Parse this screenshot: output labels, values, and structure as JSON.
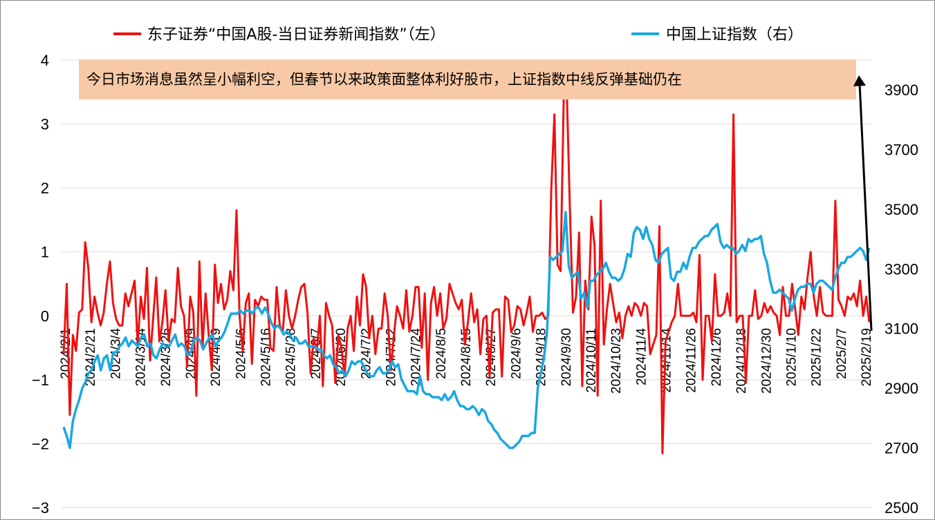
{
  "chart_data": {
    "type": "line",
    "title": "",
    "legend": {
      "placement": "top",
      "entries": [
        {
          "label": "东子证券“中国A股-当日证券新闻指数”（左）",
          "color": "#ee1111"
        },
        {
          "label": "中国上证指数（右）",
          "color": "#1aa8e0"
        }
      ]
    },
    "annotation": {
      "text": "今日市场消息虽然呈小幅利空，但春节以来政策面整体利好股市，上证指数中线反弹基础仍在",
      "background": "#f8c9a6",
      "arrow_color": "#000000"
    },
    "x_tick_labels": [
      "2024/2/1",
      "2024/2/21",
      "2024/3/4",
      "2024/3/14",
      "2024/3/26",
      "2024/4/9",
      "2024/4/19",
      "2024/5/6",
      "2024/5/16",
      "2024/5/28",
      "2024/6/7",
      "2024/6/20",
      "2024/7/2",
      "2024/7/12",
      "2024/7/24",
      "2024/8/5",
      "2024/8/15",
      "2024/8/27",
      "2024/9/6",
      "2024/9/18",
      "2024/9/30",
      "2024/10/11",
      "2024/10/23",
      "2024/11/4",
      "2024/11/14",
      "2024/11/26",
      "2024/12/6",
      "2024/12/18",
      "2024/12/30",
      "2025/1/10",
      "2025/1/22",
      "2025/2/7",
      "2025/2/19"
    ],
    "y_left": {
      "ticks": [
        4,
        3,
        2,
        1,
        0,
        -1,
        -2,
        -3
      ],
      "ylim": [
        -3,
        4
      ]
    },
    "y_right": {
      "ticks": [
        3900,
        3700,
        3500,
        3300,
        3100,
        2900,
        2700,
        2500
      ],
      "ylim": [
        2500,
        3960
      ]
    },
    "grid": true,
    "series": [
      {
        "name": "东子证券“中国A股-当日证券新闻指数”（左）",
        "axis": "left",
        "color": "#ee1111",
        "values": [
          -0.6,
          0.5,
          -1.55,
          -0.3,
          -0.55,
          0.05,
          0.1,
          1.15,
          0.75,
          -0.1,
          0.3,
          0.05,
          -0.15,
          0.05,
          0.5,
          0.85,
          0.2,
          -0.05,
          -0.15,
          -0.15,
          0.35,
          0.15,
          0.35,
          0.55,
          -0.45,
          0.3,
          -0.05,
          0.75,
          -0.7,
          -0.05,
          0.6,
          -0.4,
          -0.1,
          0.4,
          -0.4,
          -0.05,
          -0.1,
          0.75,
          0.15,
          0.0,
          -0.8,
          0.3,
          0.05,
          -1.25,
          0.85,
          -0.5,
          0.35,
          -0.3,
          -0.85,
          0.8,
          0.2,
          0.5,
          0.1,
          0.25,
          0.7,
          0.4,
          1.65,
          0.0,
          -0.55,
          0.2,
          0.35,
          -0.75,
          0.25,
          0.15,
          0.3,
          0.25,
          0.25,
          -0.5,
          -0.55,
          0.45,
          -0.15,
          -0.25,
          0.4,
          0.0,
          -0.2,
          0.0,
          0.25,
          0.45,
          0.5,
          0.05,
          -0.9,
          -0.35,
          -0.55,
          0.0,
          -1.1,
          0.2,
          0.0,
          -0.15,
          -1.05,
          -0.3,
          -0.5,
          -0.95,
          -0.2,
          0.0,
          -0.55,
          0.3,
          -0.15,
          0.65,
          0.45,
          -0.35,
          0.0,
          -0.6,
          -0.2,
          -0.2,
          0.35,
          0.0,
          -0.85,
          -0.3,
          0.15,
          0.0,
          -0.2,
          0.4,
          -0.25,
          0.0,
          0.45,
          0.45,
          -0.5,
          0.35,
          -1.0,
          0.2,
          0.45,
          0.0,
          0.35,
          -0.2,
          -0.05,
          0.5,
          0.35,
          0.2,
          0.1,
          0.25,
          -0.45,
          -0.1,
          0.35,
          -0.1,
          0.1,
          -0.6,
          -0.05,
          0.0,
          -0.95,
          0.05,
          0.1,
          0.1,
          -0.95,
          0.3,
          0.25,
          -0.25,
          -0.15,
          0.15,
          0.1,
          -0.15,
          0.05,
          0.3,
          -0.25,
          0.0,
          0.0,
          0.05,
          -0.05,
          0.0,
          2.0,
          3.15,
          0.8,
          0.7,
          3.4,
          3.5,
          1.7,
          0.05,
          0.3,
          1.3,
          -1.1,
          0.55,
          0.1,
          1.55,
          1.1,
          -1.25,
          1.8,
          -0.45,
          0.1,
          0.5,
          0.2,
          -0.1,
          0.05,
          -0.35,
          0.0,
          0.15,
          0.0,
          0.2,
          0.15,
          0.0,
          0.2,
          0.15,
          -0.6,
          -0.45,
          -0.3,
          1.4,
          -2.15,
          -0.4,
          -0.25,
          -0.1,
          0.0,
          0.5,
          0.0,
          0.0,
          0.0,
          0.0,
          0.05,
          -0.1,
          0.95,
          -1.0,
          0.0,
          0.0,
          -0.4,
          0.65,
          0.0,
          0.0,
          0.05,
          0.35,
          0.0,
          3.15,
          -0.1,
          0.0,
          0.0,
          -1.05,
          0.0,
          0.0,
          0.4,
          -0.05,
          0.0,
          0.2,
          0.05,
          0.15,
          0.05,
          0.0,
          -0.3,
          0.45,
          0.0,
          0.0,
          0.5,
          0.1,
          -0.3,
          0.3,
          0.1,
          0.6,
          1.0,
          0.3,
          0.0,
          0.45,
          0.05,
          0.0,
          0.0,
          0.0,
          1.8,
          0.25,
          0.15,
          0.0,
          0.3,
          0.25,
          0.35,
          0.15,
          0.55,
          0.0,
          0.3,
          -0.1
        ],
        "note": "estimated"
      },
      {
        "name": "中国上证指数（右）",
        "axis": "right",
        "color": "#1aa8e0",
        "values": [
          2770,
          2740,
          2700,
          2790,
          2830,
          2860,
          2900,
          2920,
          2950,
          2960,
          2990,
          3010,
          2960,
          3000,
          3010,
          2960,
          3020,
          3020,
          3040,
          3050,
          3070,
          3040,
          3060,
          3050,
          3040,
          3070,
          3080,
          3040,
          3050,
          3010,
          3000,
          3030,
          3050,
          3040,
          3040,
          3060,
          3080,
          3040,
          3050,
          3040,
          3010,
          3020,
          3060,
          3070,
          3060,
          3030,
          3050,
          3070,
          3080,
          3040,
          3060,
          3070,
          3090,
          3120,
          3150,
          3150,
          3150,
          3160,
          3150,
          3160,
          3160,
          3150,
          3170,
          3170,
          3150,
          3170,
          3150,
          3120,
          3100,
          3110,
          3100,
          3080,
          3090,
          3080,
          3060,
          3070,
          3050,
          3050,
          3060,
          3040,
          3040,
          3040,
          3030,
          3030,
          3010,
          3000,
          3010,
          2980,
          2970,
          2950,
          2960,
          2940,
          2960,
          2990,
          2980,
          2990,
          2990,
          2970,
          2950,
          2940,
          2940,
          2960,
          2970,
          2950,
          2950,
          2960,
          2990,
          2970,
          2980,
          2930,
          2910,
          2890,
          2890,
          2890,
          2880,
          2940,
          2890,
          2880,
          2880,
          2870,
          2870,
          2870,
          2860,
          2880,
          2860,
          2870,
          2890,
          2860,
          2840,
          2840,
          2830,
          2830,
          2840,
          2830,
          2810,
          2830,
          2820,
          2790,
          2780,
          2760,
          2750,
          2730,
          2720,
          2710,
          2700,
          2700,
          2710,
          2720,
          2740,
          2740,
          2740,
          2750,
          2750,
          2900,
          2950,
          3000,
          3090,
          3340,
          3330,
          3340,
          3350,
          3360,
          3490,
          3310,
          3270,
          3280,
          3290,
          3200,
          3220,
          3170,
          3260,
          3260,
          3280,
          3290,
          3300,
          3320,
          3290,
          3270,
          3270,
          3260,
          3270,
          3300,
          3350,
          3340,
          3420,
          3440,
          3430,
          3400,
          3440,
          3400,
          3380,
          3330,
          3320,
          3350,
          3360,
          3370,
          3270,
          3260,
          3290,
          3290,
          3320,
          3300,
          3340,
          3370,
          3370,
          3390,
          3400,
          3410,
          3410,
          3430,
          3440,
          3450,
          3390,
          3370,
          3380,
          3370,
          3370,
          3350,
          3360,
          3380,
          3360,
          3400,
          3390,
          3400,
          3400,
          3410,
          3350,
          3320,
          3260,
          3220,
          3220,
          3230,
          3220,
          3210,
          3200,
          3160,
          3200,
          3230,
          3240,
          3240,
          3250,
          3250,
          3220,
          3250,
          3260,
          3260,
          3250,
          3240,
          3230,
          3270,
          3300,
          3320,
          3320,
          3340,
          3340,
          3350,
          3360,
          3370,
          3360,
          3330,
          3370
        ],
        "note": "estimated"
      }
    ]
  }
}
